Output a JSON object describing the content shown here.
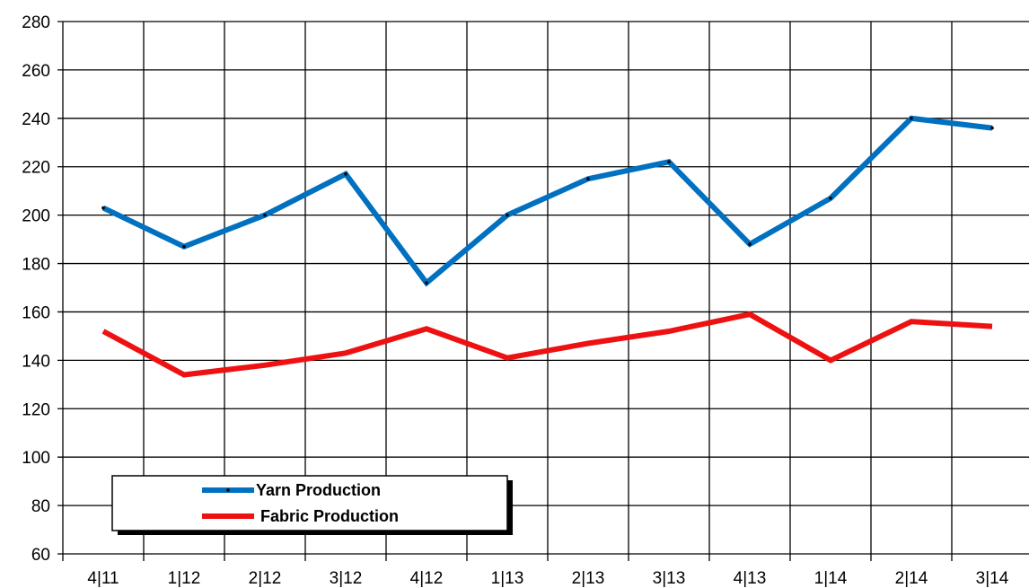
{
  "chart_data": {
    "type": "line",
    "title": "",
    "xlabel": "",
    "ylabel": "",
    "categories": [
      "4|11",
      "1|12",
      "2|12",
      "3|12",
      "4|12",
      "1|13",
      "2|13",
      "3|13",
      "4|13",
      "1|14",
      "2|14",
      "3|14"
    ],
    "series": [
      {
        "name": "Yarn Production",
        "color": "#0070c0",
        "values": [
          203,
          187,
          200,
          217,
          172,
          200,
          215,
          222,
          188,
          207,
          240,
          236
        ]
      },
      {
        "name": "Fabric Production",
        "color": "#ee1111",
        "values": [
          152,
          134,
          138,
          143,
          153,
          141,
          147,
          152,
          159,
          140,
          156,
          154
        ]
      }
    ],
    "ylim": [
      60,
      280
    ],
    "yticks": [
      60,
      80,
      100,
      120,
      140,
      160,
      180,
      200,
      220,
      240,
      260,
      280
    ],
    "grid": true,
    "legend": "bottom-left"
  }
}
